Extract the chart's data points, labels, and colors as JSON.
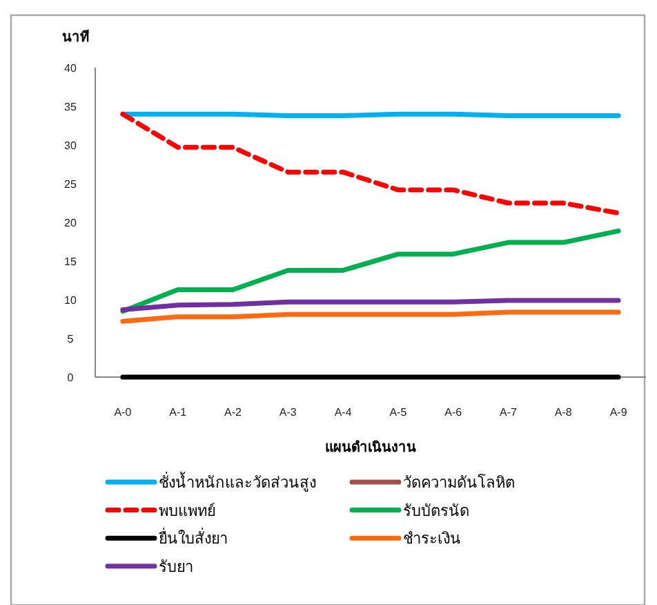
{
  "chart_data": {
    "type": "line",
    "ylabel": "นาที",
    "xlabel": "แผนดำเนินงาน",
    "categories": [
      "A-0",
      "A-1",
      "A-2",
      "A-3",
      "A-4",
      "A-5",
      "A-6",
      "A-7",
      "A-8",
      "A-9"
    ],
    "ylim": [
      0,
      40
    ],
    "yticks": [
      0,
      5,
      10,
      15,
      20,
      25,
      30,
      35,
      40
    ],
    "grid": false,
    "legend": "bottom",
    "marker": "none",
    "series": [
      {
        "name": "ชั่งน้ำหนักและวัดส่วนสูง",
        "color": "#00b0f0",
        "values": [
          34,
          34,
          34,
          33.8,
          33.8,
          34,
          34,
          33.8,
          33.8,
          33.8
        ]
      },
      {
        "name": "วัดความดันโลหิต",
        "color": "#a0504b",
        "values": [
          null,
          null,
          null,
          null,
          null,
          null,
          null,
          null,
          null,
          null
        ]
      },
      {
        "name": "พบแพทย์",
        "color": "#ff0000",
        "line_style": "dashed",
        "values": [
          34,
          29.7,
          29.7,
          26.5,
          26.5,
          24.2,
          24.2,
          22.5,
          22.5,
          21.2
        ]
      },
      {
        "name": "รับบัตรนัด",
        "color": "#00b050",
        "values": [
          8.5,
          11.3,
          11.3,
          13.8,
          13.8,
          15.9,
          15.9,
          17.4,
          17.4,
          18.9
        ]
      },
      {
        "name": "ยื่นใบสั่งยา",
        "color": "#000000",
        "values": [
          0,
          0,
          0,
          0,
          0,
          0,
          0,
          0,
          0,
          0
        ]
      },
      {
        "name": "ชำระเงิน",
        "color": "#ff6a13",
        "values": [
          7.2,
          7.8,
          7.8,
          8.1,
          8.1,
          8.1,
          8.1,
          8.4,
          8.4,
          8.4
        ]
      },
      {
        "name": "รับยา",
        "color": "#7030a0",
        "values": [
          8.7,
          9.3,
          9.4,
          9.7,
          9.7,
          9.7,
          9.7,
          9.9,
          9.9,
          9.9
        ]
      }
    ]
  }
}
